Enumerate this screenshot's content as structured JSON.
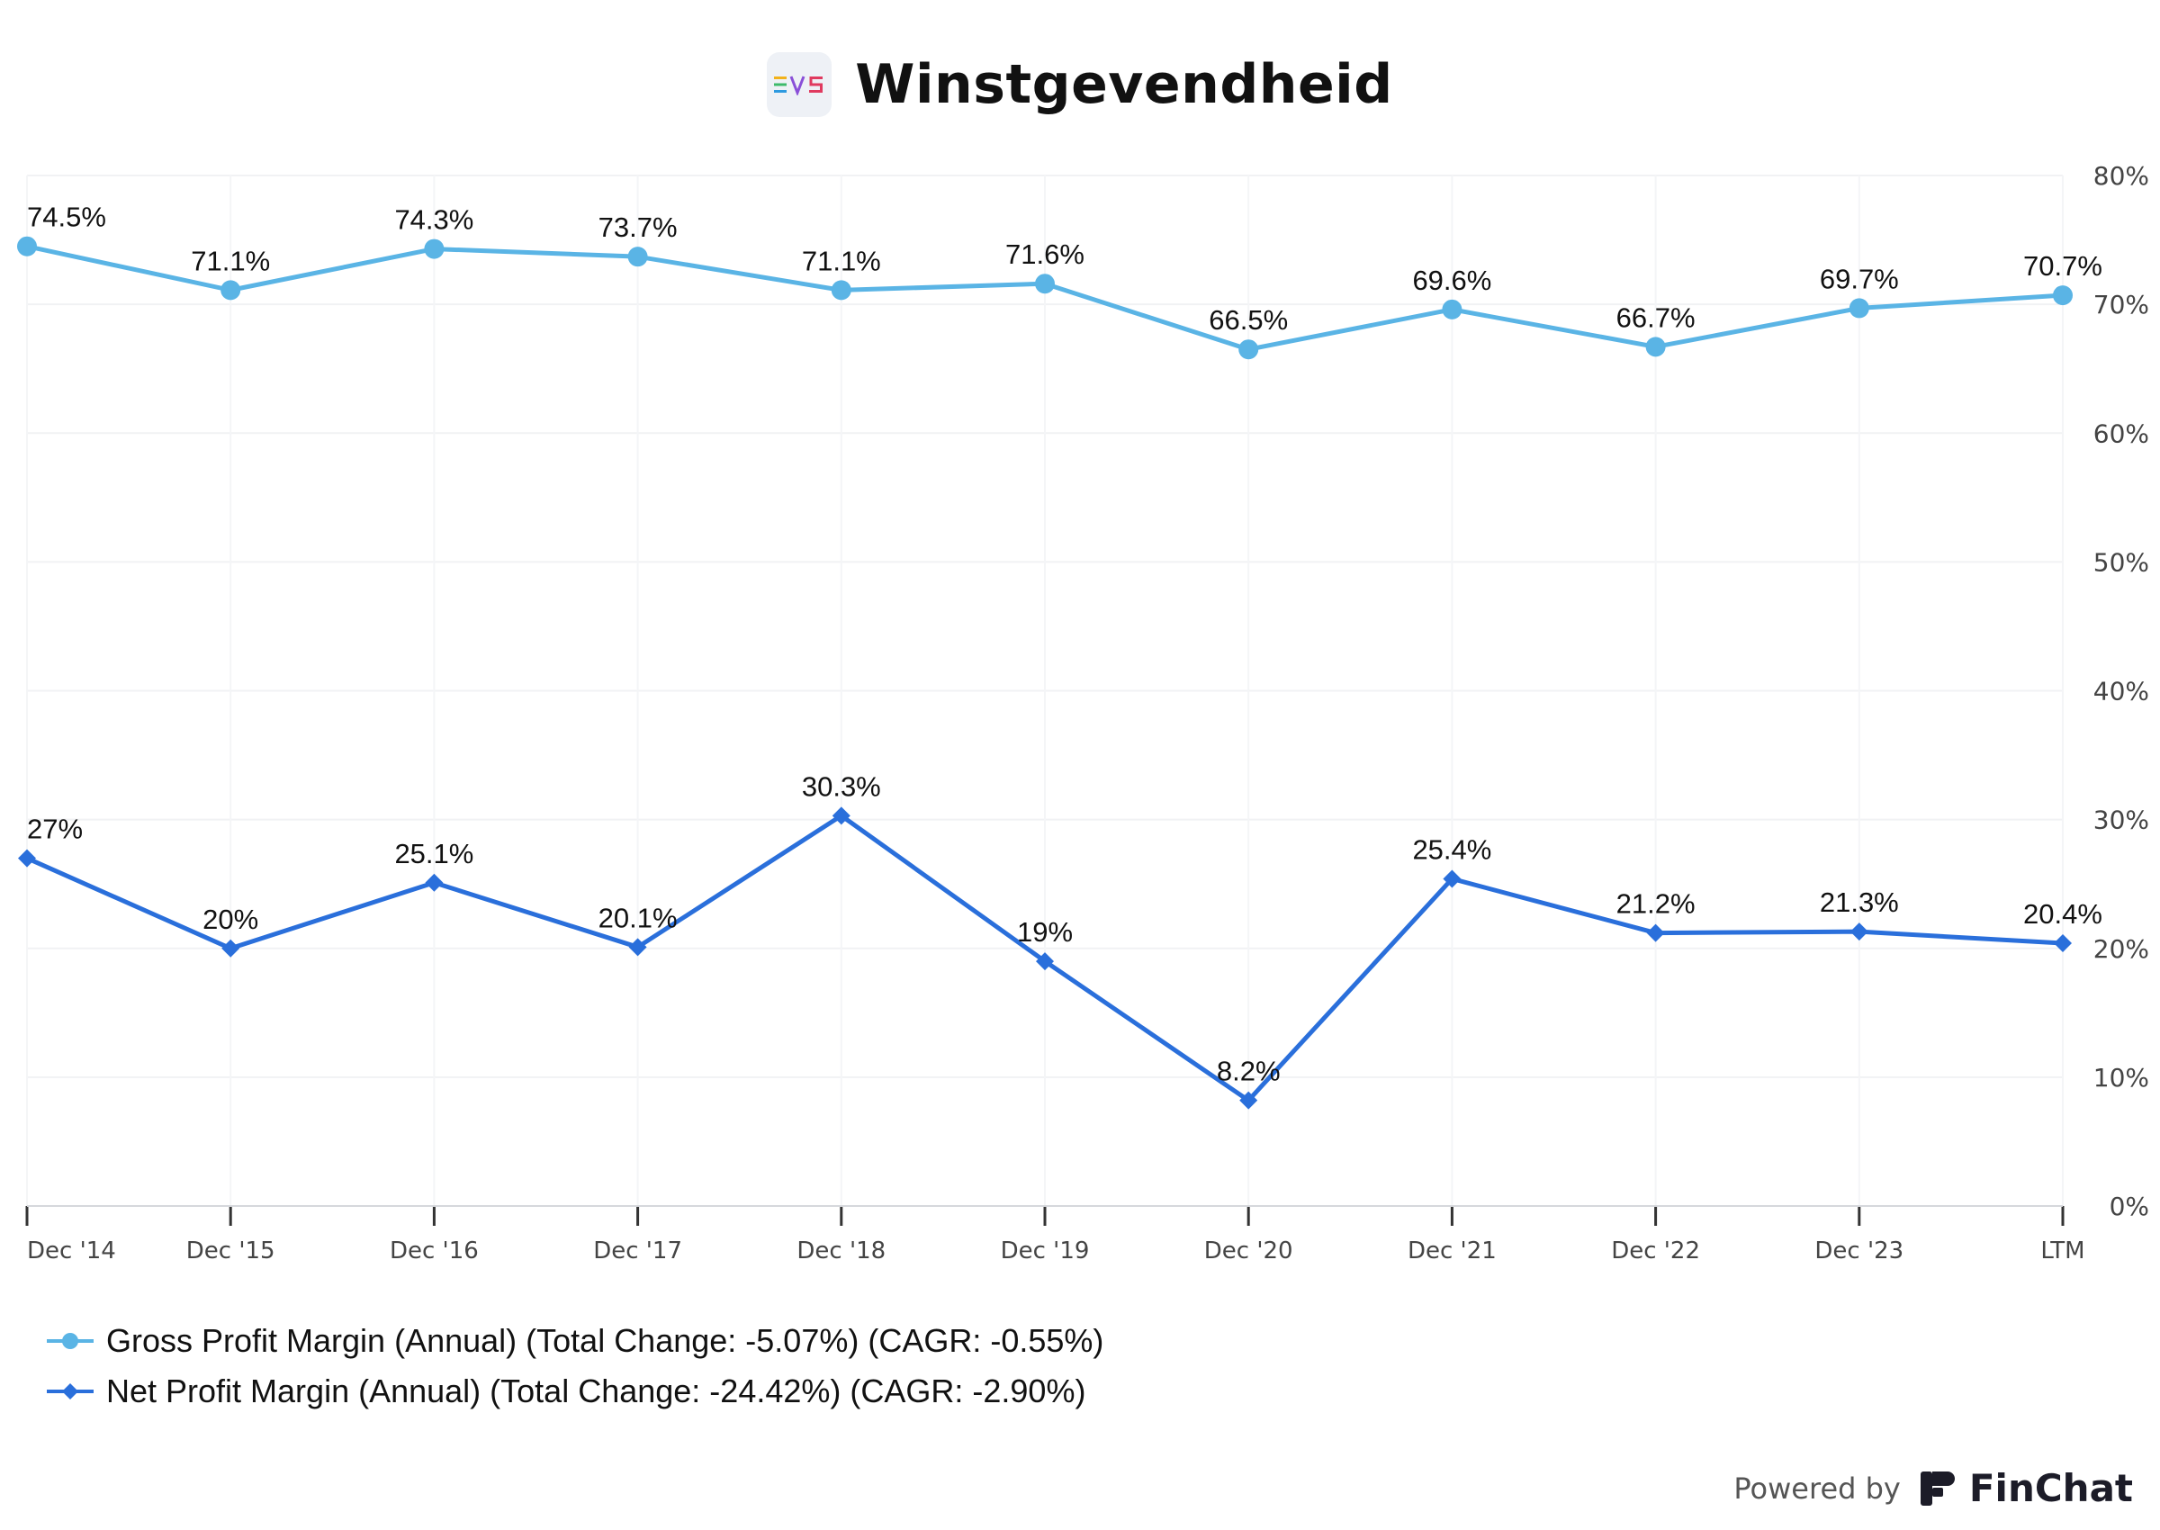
{
  "header": {
    "title": "Winstgevendheid",
    "logo_text": "EVS"
  },
  "chart_data": {
    "type": "line",
    "title": "Winstgevendheid",
    "categories": [
      "Dec '14",
      "Dec '15",
      "Dec '16",
      "Dec '17",
      "Dec '18",
      "Dec '19",
      "Dec '20",
      "Dec '21",
      "Dec '22",
      "Dec '23",
      "LTM"
    ],
    "y_ticks": [
      "0%",
      "10%",
      "20%",
      "30%",
      "40%",
      "50%",
      "60%",
      "70%",
      "80%"
    ],
    "ylim": [
      0,
      80
    ],
    "y_axis_position": "right",
    "grid": true,
    "legend_position": "bottom-left",
    "series": [
      {
        "name": "Gross Profit Margin (Annual) (Total Change: -5.07%) (CAGR: -0.55%)",
        "marker": "circle",
        "color": "#5ab4e5",
        "values": [
          74.5,
          71.1,
          74.3,
          73.7,
          71.1,
          71.6,
          66.5,
          69.6,
          66.7,
          69.7,
          70.7
        ],
        "labels": [
          "74.5%",
          "71.1%",
          "74.3%",
          "73.7%",
          "71.1%",
          "71.6%",
          "66.5%",
          "69.6%",
          "66.7%",
          "69.7%",
          "70.7%"
        ]
      },
      {
        "name": "Net Profit Margin (Annual) (Total Change: -24.42%) (CAGR: -2.90%)",
        "marker": "diamond",
        "color": "#2a6fdb",
        "values": [
          27,
          20,
          25.1,
          20.1,
          30.3,
          19,
          8.2,
          25.4,
          21.2,
          21.3,
          20.4
        ],
        "labels": [
          "27%",
          "20%",
          "25.1%",
          "20.1%",
          "30.3%",
          "19%",
          "8.2%",
          "25.4%",
          "21.2%",
          "21.3%",
          "20.4%"
        ]
      }
    ]
  },
  "footer": {
    "powered_by": "Powered by",
    "brand": "FinChat"
  }
}
